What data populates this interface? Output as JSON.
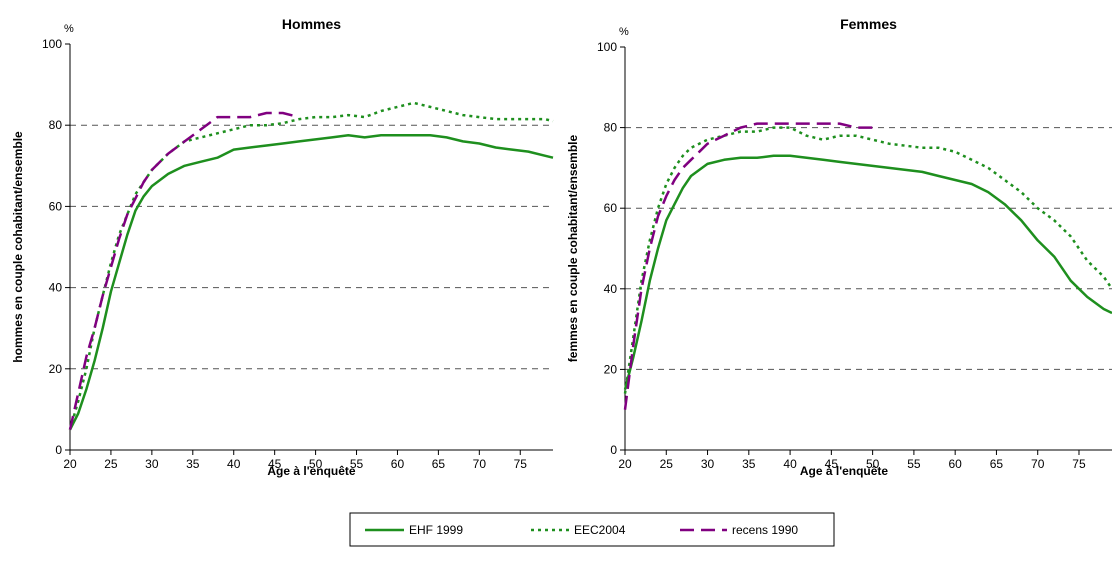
{
  "colors": {
    "ehf": "#1e8f1e",
    "eec": "#1e8f1e",
    "rec": "#800080",
    "grid": "#555555"
  },
  "legend": [
    {
      "label": "EHF 1999",
      "style": "solid",
      "color": "#1e8f1e"
    },
    {
      "label": "EEC2004",
      "style": "dotted",
      "color": "#1e8f1e"
    },
    {
      "label": "recens 1990",
      "style": "dashed",
      "color": "#800080"
    }
  ],
  "chart_data": [
    {
      "type": "line",
      "title": "Hommes",
      "ylabel": "hommes en couple cohabitant/ensemble",
      "xlabel": "Age à l'enquête",
      "yunit": "%",
      "xlim": [
        20,
        79
      ],
      "ylim": [
        0,
        100
      ],
      "xticks": [
        20,
        25,
        30,
        35,
        40,
        45,
        50,
        55,
        60,
        65,
        70,
        75
      ],
      "yticks": [
        0,
        20,
        40,
        60,
        80,
        100
      ],
      "grid": "horizontal dashed",
      "series": [
        {
          "name": "EHF 1999",
          "style": "solid",
          "x": [
            20,
            21,
            22,
            23,
            24,
            25,
            26,
            27,
            28,
            29,
            30,
            32,
            34,
            36,
            38,
            40,
            42,
            44,
            46,
            48,
            50,
            52,
            54,
            56,
            58,
            60,
            62,
            64,
            66,
            68,
            70,
            72,
            74,
            76,
            78,
            79
          ],
          "y": [
            5,
            9,
            15,
            22,
            30,
            39,
            46,
            53,
            59,
            62.5,
            65,
            68,
            70,
            71,
            72,
            74,
            74.5,
            75,
            75.5,
            76,
            76.5,
            77,
            77.5,
            77,
            77.5,
            77.5,
            77.5,
            77.5,
            77,
            76,
            75.5,
            74.5,
            74,
            73.5,
            72.5,
            72
          ]
        },
        {
          "name": "EEC2004",
          "style": "dotted",
          "x": [
            20,
            21,
            22,
            23,
            24,
            25,
            26,
            27,
            28,
            29,
            30,
            32,
            34,
            36,
            38,
            40,
            42,
            44,
            46,
            48,
            50,
            52,
            54,
            56,
            58,
            60,
            62,
            64,
            66,
            68,
            70,
            72,
            74,
            76,
            78,
            79
          ],
          "y": [
            5,
            12,
            20,
            30,
            38,
            46,
            53,
            58,
            63,
            66,
            69,
            73,
            76,
            77,
            78,
            79,
            80,
            80,
            80.5,
            81.5,
            82,
            82,
            82.5,
            82,
            83.5,
            84.5,
            85.5,
            84.5,
            83.5,
            82.5,
            82,
            81.5,
            81.5,
            81.5,
            81.5,
            81
          ]
        },
        {
          "name": "recens 1990",
          "style": "dashed",
          "x": [
            20,
            21,
            22,
            23,
            24,
            25,
            26,
            27,
            28,
            29,
            30,
            32,
            34,
            36,
            38,
            40,
            42,
            44,
            46,
            48
          ],
          "y": [
            5,
            14,
            23,
            30,
            38,
            45,
            52,
            58,
            62,
            66,
            69,
            73,
            76,
            79,
            82,
            82,
            82,
            83,
            83,
            82
          ]
        }
      ]
    },
    {
      "type": "line",
      "title": "Femmes",
      "ylabel": "femmes en couple cohabitant/ensemble",
      "xlabel": "Age à l'enquête",
      "yunit": "%",
      "xlim": [
        20,
        79
      ],
      "ylim": [
        0,
        100
      ],
      "xticks": [
        20,
        25,
        30,
        35,
        40,
        45,
        50,
        55,
        60,
        65,
        70,
        75
      ],
      "yticks": [
        0,
        20,
        40,
        60,
        80,
        100
      ],
      "grid": "horizontal dashed",
      "series": [
        {
          "name": "EHF 1999",
          "style": "solid",
          "x": [
            20,
            21,
            22,
            23,
            24,
            25,
            26,
            27,
            28,
            29,
            30,
            32,
            34,
            36,
            38,
            40,
            42,
            44,
            46,
            48,
            50,
            52,
            54,
            56,
            58,
            60,
            62,
            64,
            66,
            68,
            70,
            72,
            74,
            76,
            78,
            79
          ],
          "y": [
            15,
            23,
            32,
            42,
            50,
            57,
            61,
            65,
            68,
            69.5,
            71,
            72,
            72.5,
            72.5,
            73,
            73,
            72.5,
            72,
            71.5,
            71,
            70.5,
            70,
            69.5,
            69,
            68,
            67,
            66,
            64,
            61,
            57,
            52,
            48,
            42,
            38,
            35,
            34
          ]
        },
        {
          "name": "EEC2004",
          "style": "dotted",
          "x": [
            20,
            21,
            22,
            23,
            24,
            25,
            26,
            27,
            28,
            29,
            30,
            32,
            34,
            36,
            38,
            40,
            42,
            44,
            46,
            48,
            50,
            52,
            54,
            56,
            58,
            60,
            62,
            64,
            66,
            68,
            70,
            72,
            74,
            76,
            78,
            79
          ],
          "y": [
            14,
            28,
            42,
            52,
            60,
            66,
            70,
            73,
            75,
            76,
            77,
            78,
            79,
            79,
            80,
            80,
            78,
            77,
            78,
            78,
            77,
            76,
            75.5,
            75,
            75,
            74,
            72,
            70,
            67,
            64,
            60,
            57,
            53,
            47,
            43,
            40
          ]
        },
        {
          "name": "recens 1990",
          "style": "dashed",
          "x": [
            20,
            21,
            22,
            23,
            24,
            25,
            26,
            27,
            28,
            29,
            30,
            32,
            34,
            36,
            38,
            40,
            42,
            44,
            46,
            48,
            50
          ],
          "y": [
            10,
            26,
            40,
            50,
            58,
            63,
            67,
            70,
            72,
            74,
            76,
            78,
            80,
            81,
            81,
            81,
            81,
            81,
            81,
            80,
            80
          ]
        }
      ]
    }
  ]
}
